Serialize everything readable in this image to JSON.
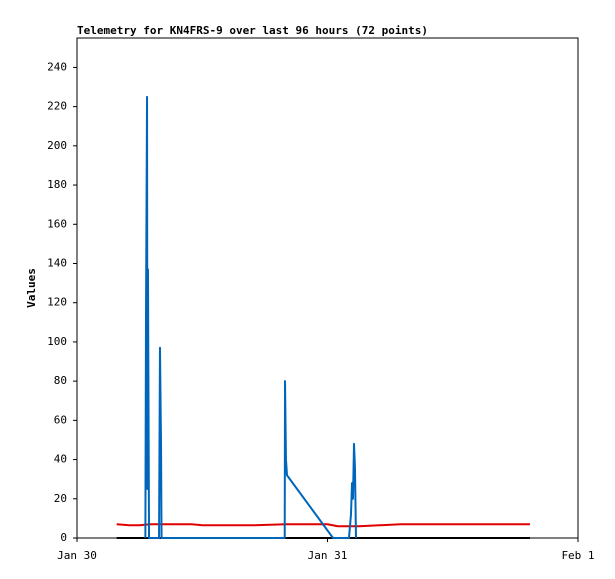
{
  "chart_data": {
    "type": "line",
    "title": "Telemetry for KN4FRS-9 over last 96 hours (72 points)",
    "ylabel": "Values",
    "xlim": [
      0,
      48
    ],
    "xticks": [
      {
        "value": 0,
        "label": "Jan 30"
      },
      {
        "value": 24,
        "label": "Jan 31"
      },
      {
        "value": 48,
        "label": "Feb 1"
      }
    ],
    "ylim": [
      0,
      255
    ],
    "yticks": [
      0,
      20,
      40,
      60,
      80,
      100,
      120,
      140,
      160,
      180,
      200,
      220,
      240
    ],
    "series": [
      {
        "color": "#e00000",
        "x": [
          3.8,
          5,
          6,
          7,
          11,
          12,
          17,
          20,
          24,
          25,
          27,
          31,
          43.4
        ],
        "values": [
          7,
          6.5,
          6.5,
          7,
          7,
          6.5,
          6.5,
          7,
          7,
          6,
          6,
          7,
          7
        ]
      },
      {
        "color": "#000000",
        "x": [
          3.8,
          43.4
        ],
        "values": [
          0,
          0
        ]
      },
      {
        "color": "#0066bb",
        "x": [
          6.55,
          6.61,
          6.71,
          6.75,
          6.8,
          6.9,
          7.86,
          7.95,
          8.05,
          8.1,
          19.9,
          19.93,
          20.02,
          20.12,
          24.53,
          26.06,
          26.25,
          26.35,
          26.44,
          26.54,
          26.63,
          26.73
        ],
        "values": [
          0,
          112,
          225,
          25,
          137,
          0,
          0,
          97,
          48,
          0,
          0,
          80,
          40,
          32,
          0,
          0,
          12,
          28,
          20,
          48,
          36,
          0
        ]
      }
    ]
  }
}
